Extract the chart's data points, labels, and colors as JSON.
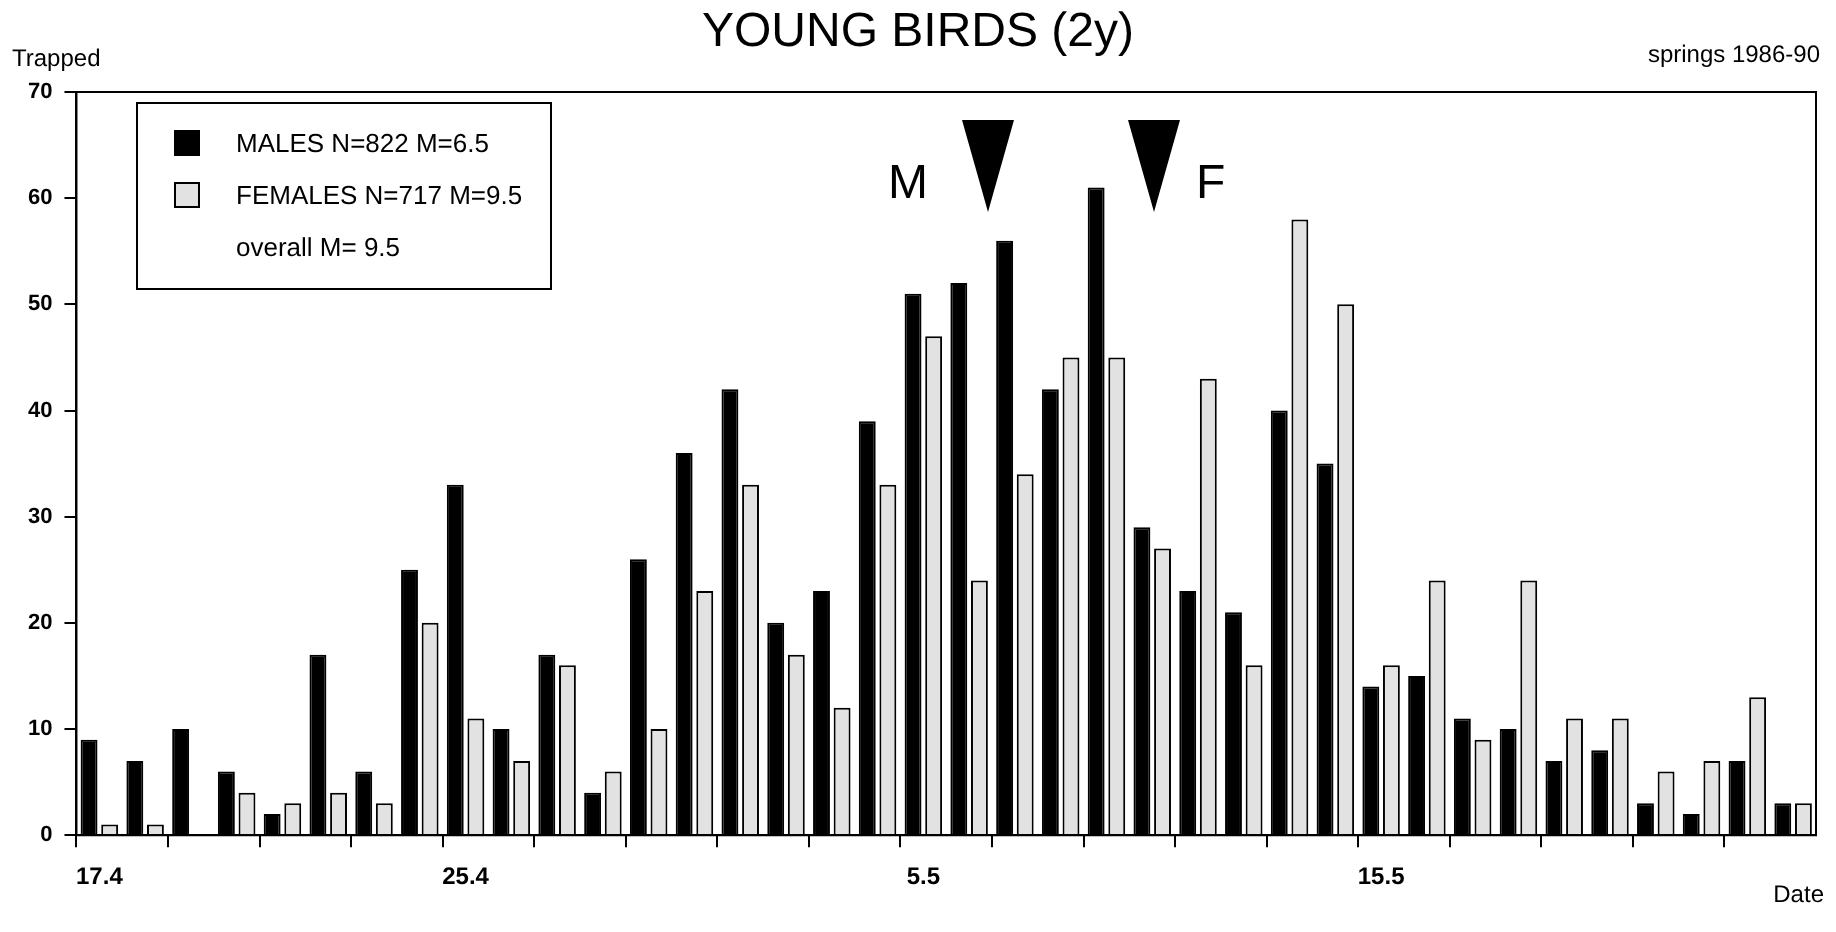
{
  "chart_data": {
    "type": "bar",
    "title": "YOUNG BIRDS (2y)",
    "subtitle": "springs 1986-90",
    "xlabel": "Date",
    "ylabel": "Trapped",
    "categories": [
      "17.4",
      null,
      null,
      null,
      null,
      null,
      null,
      null,
      "25.4",
      null,
      null,
      null,
      null,
      null,
      null,
      null,
      null,
      null,
      "5.5",
      null,
      null,
      null,
      null,
      null,
      null,
      null,
      null,
      null,
      "15.5",
      null,
      null,
      null,
      null,
      null,
      null,
      null,
      null,
      null
    ],
    "series": [
      {
        "name": "MALES N=822 M=6.5",
        "color": "#000000",
        "values": [
          9,
          7,
          10,
          6,
          2,
          17,
          6,
          25,
          33,
          10,
          17,
          4,
          26,
          36,
          42,
          20,
          23,
          39,
          51,
          52,
          56,
          42,
          61,
          29,
          23,
          21,
          40,
          35,
          14,
          15,
          11,
          10,
          7,
          8,
          3,
          2,
          7,
          3
        ]
      },
      {
        "name": "FEMALES N=717 M=9.5",
        "color": "#e2e2e2",
        "values": [
          1,
          1,
          0,
          4,
          3,
          4,
          3,
          20,
          11,
          7,
          16,
          6,
          10,
          23,
          33,
          17,
          12,
          33,
          47,
          24,
          34,
          45,
          45,
          27,
          43,
          16,
          58,
          50,
          16,
          24,
          9,
          24,
          11,
          11,
          6,
          7,
          13,
          3
        ]
      }
    ],
    "ylim": [
      0,
      70
    ],
    "yticks": [
      0,
      10,
      20,
      30,
      40,
      50,
      60,
      70
    ],
    "legend": "top left",
    "annotations": [
      "overall M= 9.5",
      "M",
      "F"
    ]
  }
}
